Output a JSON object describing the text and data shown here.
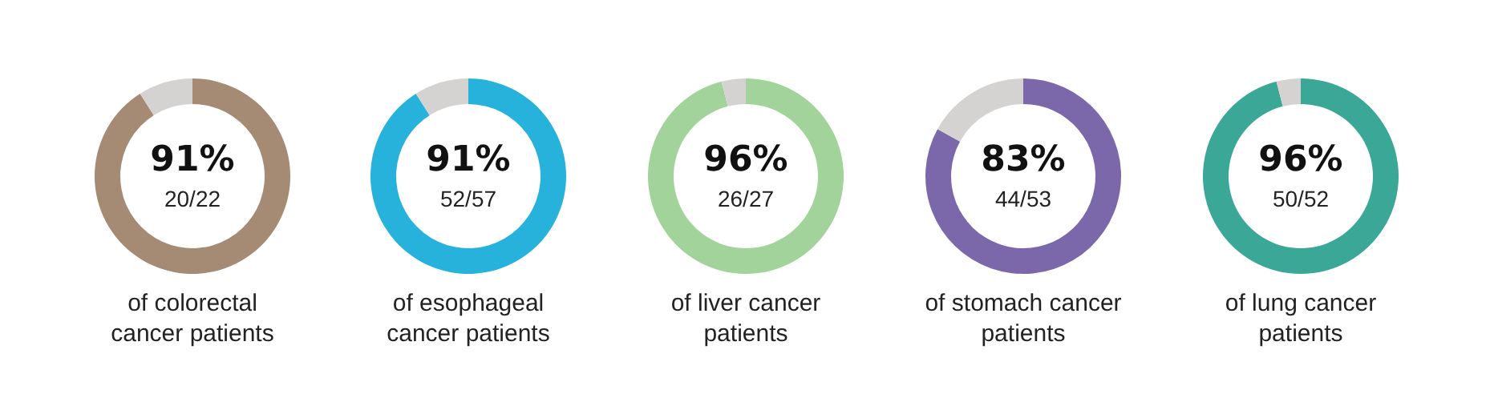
{
  "chart_data": [
    {
      "type": "donut",
      "title": "of colorectal cancer patients",
      "categories": [
        null,
        null
      ],
      "values": [
        91,
        9
      ],
      "colors": [
        "#a58a74",
        "#d5d3d2"
      ],
      "annotations": [
        "91%",
        "20/22"
      ]
    },
    {
      "type": "donut",
      "title": "of esophageal cancer patients",
      "categories": [
        null,
        null
      ],
      "values": [
        91,
        9
      ],
      "colors": [
        "#27b2dc",
        "#d5d3d2"
      ],
      "annotations": [
        "91%",
        "52/57"
      ]
    },
    {
      "type": "donut",
      "title": "of liver cancer patients",
      "categories": [
        null,
        null
      ],
      "values": [
        96,
        4
      ],
      "colors": [
        "#a2d39a",
        "#d5d3d2"
      ],
      "annotations": [
        "96%",
        "26/27"
      ]
    },
    {
      "type": "donut",
      "title": "of stomach cancer patients",
      "categories": [
        null,
        null
      ],
      "values": [
        83,
        17
      ],
      "colors": [
        "#7a68aa",
        "#d5d3d2"
      ],
      "annotations": [
        "83%",
        "44/53"
      ]
    },
    {
      "type": "donut",
      "title": "of lung cancer patients",
      "categories": [
        null,
        null
      ],
      "values": [
        96,
        4
      ],
      "colors": [
        "#3aa797",
        "#d5d3d2"
      ],
      "annotations": [
        "96%",
        "50/52"
      ]
    }
  ]
}
